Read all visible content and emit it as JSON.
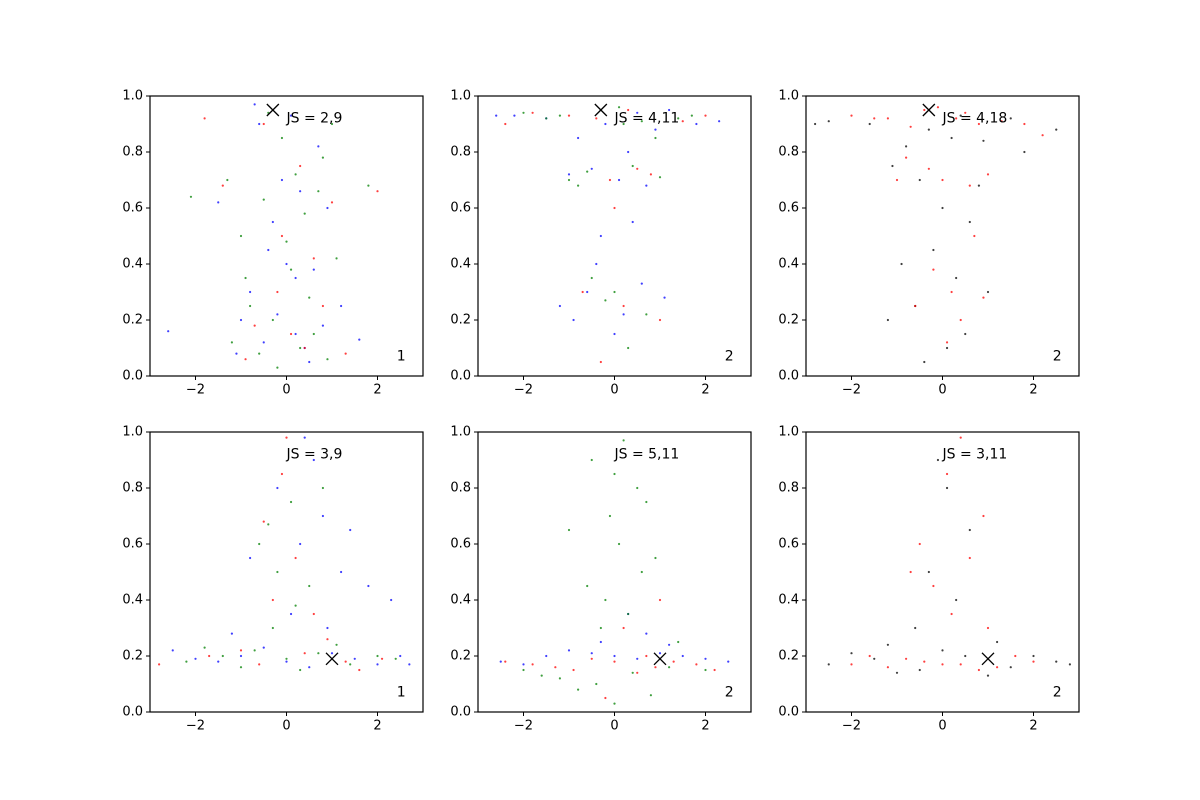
{
  "chart_data": [
    {
      "type": "scatter",
      "annotation": "JS = 2,9",
      "panel_label": "1",
      "marker": {
        "x": -0.3,
        "y": 0.95
      },
      "xlim": [
        -3,
        3
      ],
      "ylim": [
        0,
        1
      ],
      "xticks": [
        {
          "value": -2,
          "label": "−2"
        },
        0,
        2
      ],
      "yticks": [
        {
          "value": 0,
          "label": "0.0"
        },
        0.2,
        0.4,
        0.6,
        0.8,
        {
          "value": 1,
          "label": "1.0"
        }
      ],
      "series": [
        {
          "color": "#0000ff",
          "x": [
            -0.5,
            0.2,
            -1.1,
            0.8,
            -0.2,
            0.4,
            -0.8,
            1.2,
            0.0,
            -0.4,
            0.6,
            -1.5,
            0.3,
            -0.1,
            0.9,
            -0.6,
            0.1,
            1.6,
            -2.6,
            0.5,
            -0.3,
            -1.0,
            0.7,
            0.2,
            -0.7
          ],
          "y": [
            0.12,
            0.15,
            0.08,
            0.18,
            0.22,
            0.1,
            0.3,
            0.25,
            0.4,
            0.45,
            0.38,
            0.62,
            0.66,
            0.7,
            0.6,
            0.9,
            0.93,
            0.13,
            0.16,
            0.05,
            0.55,
            0.2,
            0.82,
            0.35,
            0.97
          ]
        },
        {
          "color": "#ff0000",
          "x": [
            -0.9,
            0.4,
            -0.2,
            1.0,
            -1.4,
            0.6,
            -0.5,
            0.1,
            1.3,
            -1.8,
            0.8,
            -0.1,
            0.3,
            -0.7,
            2.0
          ],
          "y": [
            0.06,
            0.1,
            0.3,
            0.62,
            0.68,
            0.42,
            0.9,
            0.15,
            0.08,
            0.92,
            0.25,
            0.5,
            0.75,
            0.18,
            0.66
          ]
        },
        {
          "color": "#008000",
          "x": [
            -0.6,
            0.3,
            -1.2,
            0.9,
            -0.3,
            0.5,
            -0.9,
            1.1,
            0.0,
            -0.5,
            0.7,
            -1.3,
            0.2,
            -0.1,
            1.0,
            -0.4,
            0.4,
            -2.1,
            1.8,
            -0.8,
            0.6,
            -0.2,
            0.1,
            -1.0,
            0.8
          ],
          "y": [
            0.08,
            0.1,
            0.12,
            0.06,
            0.2,
            0.28,
            0.35,
            0.42,
            0.48,
            0.63,
            0.66,
            0.7,
            0.72,
            0.85,
            0.9,
            0.94,
            0.58,
            0.64,
            0.68,
            0.25,
            0.15,
            0.03,
            0.38,
            0.5,
            0.78
          ]
        }
      ]
    },
    {
      "type": "scatter",
      "annotation": "JS = 4,11",
      "panel_label": "2",
      "marker": {
        "x": -0.3,
        "y": 0.95
      },
      "xlim": [
        -3,
        3
      ],
      "ylim": [
        0,
        1
      ],
      "xticks": [
        {
          "value": -2,
          "label": "−2"
        },
        0,
        2
      ],
      "yticks": [
        {
          "value": 0,
          "label": "0.0"
        },
        0.2,
        0.4,
        0.6,
        0.8,
        {
          "value": 1,
          "label": "1.0"
        }
      ],
      "series": [
        {
          "color": "#0000ff",
          "x": [
            -1.5,
            0.5,
            -0.2,
            1.2,
            -2.2,
            0.9,
            -0.8,
            0.3,
            1.8,
            -0.5,
            0.1,
            -1.0,
            0.7,
            -0.3,
            0.4,
            -0.6,
            1.1,
            -1.2,
            0.2,
            0.0,
            -0.4,
            0.6,
            -0.9,
            2.3,
            -2.6
          ],
          "y": [
            0.92,
            0.94,
            0.9,
            0.95,
            0.93,
            0.88,
            0.85,
            0.8,
            0.9,
            0.74,
            0.7,
            0.72,
            0.68,
            0.5,
            0.55,
            0.3,
            0.28,
            0.25,
            0.22,
            0.15,
            0.4,
            0.33,
            0.2,
            0.91,
            0.93
          ]
        },
        {
          "color": "#ff0000",
          "x": [
            -1.0,
            0.3,
            -0.4,
            1.5,
            -1.8,
            0.8,
            -0.1,
            0.5,
            -0.7,
            0.2,
            1.0,
            -0.3,
            0.0,
            2.0,
            -2.4
          ],
          "y": [
            0.93,
            0.95,
            0.92,
            0.91,
            0.94,
            0.72,
            0.7,
            0.74,
            0.3,
            0.25,
            0.2,
            0.05,
            0.6,
            0.93,
            0.9
          ]
        },
        {
          "color": "#008000",
          "x": [
            -1.2,
            0.6,
            -0.3,
            1.4,
            -2.0,
            0.2,
            -0.6,
            1.0,
            -1.0,
            0.4,
            0.0,
            -0.2,
            0.7,
            -0.5,
            1.7,
            0.1,
            -1.5,
            0.9,
            -0.8,
            0.3
          ],
          "y": [
            0.93,
            0.91,
            0.95,
            0.92,
            0.94,
            0.9,
            0.73,
            0.71,
            0.7,
            0.75,
            0.3,
            0.27,
            0.22,
            0.35,
            0.93,
            0.96,
            0.92,
            0.85,
            0.68,
            0.1
          ]
        }
      ]
    },
    {
      "type": "scatter",
      "annotation": "JS = 4,18",
      "panel_label": "2",
      "marker": {
        "x": -0.3,
        "y": 0.95
      },
      "xlim": [
        -3,
        3
      ],
      "ylim": [
        0,
        1
      ],
      "xticks": [
        {
          "value": -2,
          "label": "−2"
        },
        0,
        2
      ],
      "yticks": [
        {
          "value": 0,
          "label": "0.0"
        },
        0.2,
        0.4,
        0.6,
        0.8,
        {
          "value": 1,
          "label": "1.0"
        }
      ],
      "series": [
        {
          "color": "#000000",
          "x": [
            -1.6,
            0.4,
            -0.3,
            1.5,
            -2.5,
            0.9,
            -0.8,
            0.2,
            1.8,
            -0.5,
            0.0,
            -1.1,
            0.6,
            -0.2,
            0.3,
            -0.6,
            1.0,
            -1.2,
            0.1,
            -0.4,
            0.5,
            2.5,
            -2.8,
            0.8,
            -0.9
          ],
          "y": [
            0.9,
            0.93,
            0.88,
            0.92,
            0.91,
            0.84,
            0.82,
            0.85,
            0.8,
            0.7,
            0.6,
            0.75,
            0.55,
            0.45,
            0.35,
            0.25,
            0.3,
            0.2,
            0.1,
            0.05,
            0.15,
            0.88,
            0.9,
            0.68,
            0.4
          ]
        },
        {
          "color": "#ff0000",
          "x": [
            -1.2,
            0.5,
            -0.4,
            1.3,
            -2.0,
            0.8,
            -0.1,
            0.3,
            -0.7,
            1.0,
            0.0,
            -0.3,
            0.6,
            -1.0,
            1.8,
            0.2,
            -1.5,
            0.9,
            -0.6,
            0.4,
            -0.2,
            0.1,
            2.2,
            -0.8,
            0.7
          ],
          "y": [
            0.92,
            0.94,
            0.95,
            0.91,
            0.93,
            0.9,
            0.96,
            0.92,
            0.89,
            0.72,
            0.7,
            0.74,
            0.68,
            0.7,
            0.9,
            0.3,
            0.92,
            0.28,
            0.25,
            0.2,
            0.38,
            0.12,
            0.86,
            0.78,
            0.5
          ]
        }
      ]
    },
    {
      "type": "scatter",
      "annotation": "JS = 3,9",
      "panel_label": "1",
      "marker": {
        "x": 1.0,
        "y": 0.19
      },
      "xlim": [
        -3,
        3
      ],
      "ylim": [
        0,
        1
      ],
      "xticks": [
        {
          "value": -2,
          "label": "−2"
        },
        0,
        2
      ],
      "yticks": [
        {
          "value": 0,
          "label": "0.0"
        },
        0.2,
        0.4,
        0.6,
        0.8,
        {
          "value": 1,
          "label": "1.0"
        }
      ],
      "series": [
        {
          "color": "#0000ff",
          "x": [
            -2.0,
            -1.0,
            0.0,
            1.0,
            2.0,
            2.5,
            -2.5,
            0.5,
            -0.5,
            1.5,
            -1.5,
            0.3,
            0.8,
            1.2,
            -0.2,
            0.6,
            1.8,
            2.3,
            0.1,
            0.9,
            -0.8,
            1.4,
            0.4,
            -1.2,
            2.7
          ],
          "y": [
            0.19,
            0.2,
            0.18,
            0.21,
            0.17,
            0.2,
            0.22,
            0.16,
            0.23,
            0.19,
            0.18,
            0.6,
            0.7,
            0.5,
            0.8,
            0.9,
            0.45,
            0.4,
            0.35,
            0.3,
            0.55,
            0.65,
            0.98,
            0.28,
            0.17
          ]
        },
        {
          "color": "#ff0000",
          "x": [
            -1.7,
            -0.6,
            0.4,
            1.3,
            2.1,
            -0.3,
            0.2,
            -0.5,
            0.6,
            -2.8,
            0.0,
            0.9,
            -1.0,
            1.6,
            -0.1
          ],
          "y": [
            0.2,
            0.17,
            0.21,
            0.18,
            0.19,
            0.4,
            0.55,
            0.68,
            0.35,
            0.17,
            0.98,
            0.26,
            0.22,
            0.15,
            0.85
          ]
        },
        {
          "color": "#008000",
          "x": [
            -2.2,
            -1.4,
            -0.7,
            0.0,
            0.7,
            1.4,
            2.0,
            -1.0,
            0.3,
            -0.3,
            0.5,
            -0.6,
            0.1,
            0.8,
            -0.2,
            1.1,
            -1.8,
            0.2,
            -0.4,
            2.4
          ],
          "y": [
            0.18,
            0.2,
            0.22,
            0.19,
            0.21,
            0.17,
            0.2,
            0.16,
            0.15,
            0.3,
            0.45,
            0.6,
            0.75,
            0.8,
            0.5,
            0.24,
            0.23,
            0.38,
            0.67,
            0.19
          ]
        }
      ]
    },
    {
      "type": "scatter",
      "annotation": "JS = 5,11",
      "panel_label": "2",
      "marker": {
        "x": 1.0,
        "y": 0.19
      },
      "xlim": [
        -3,
        3
      ],
      "ylim": [
        0,
        1
      ],
      "xticks": [
        {
          "value": -2,
          "label": "−2"
        },
        0,
        2
      ],
      "yticks": [
        {
          "value": 0,
          "label": "0.0"
        },
        0.2,
        0.4,
        0.6,
        0.8,
        {
          "value": 1,
          "label": "1.0"
        }
      ],
      "series": [
        {
          "color": "#0000ff",
          "x": [
            -2.5,
            -1.5,
            -0.5,
            0.5,
            1.5,
            2.5,
            -1.0,
            1.0,
            0.0,
            2.0,
            -2.0,
            0.3,
            0.7,
            -0.3,
            1.2
          ],
          "y": [
            0.18,
            0.2,
            0.21,
            0.19,
            0.2,
            0.18,
            0.22,
            0.21,
            0.2,
            0.19,
            0.17,
            0.35,
            0.28,
            0.25,
            0.24
          ]
        },
        {
          "color": "#ff0000",
          "x": [
            -1.8,
            -0.9,
            0.0,
            0.9,
            1.8,
            -0.5,
            0.5,
            1.3,
            -1.3,
            0.2,
            -0.2,
            2.2,
            -2.4,
            0.7,
            1.0
          ],
          "y": [
            0.17,
            0.15,
            0.18,
            0.16,
            0.17,
            0.19,
            0.14,
            0.18,
            0.16,
            0.3,
            0.05,
            0.15,
            0.18,
            0.2,
            0.4
          ]
        },
        {
          "color": "#008000",
          "x": [
            -2.0,
            -1.2,
            -0.4,
            0.4,
            1.2,
            2.0,
            -0.8,
            0.8,
            0.0,
            -0.3,
            0.3,
            -0.6,
            0.6,
            0.1,
            -0.1,
            0.5,
            -0.5,
            0.2,
            -0.2,
            0.9,
            -1.0,
            1.4,
            0.0,
            -1.6,
            0.7
          ],
          "y": [
            0.15,
            0.12,
            0.1,
            0.14,
            0.16,
            0.15,
            0.08,
            0.06,
            0.03,
            0.3,
            0.35,
            0.45,
            0.5,
            0.6,
            0.7,
            0.8,
            0.9,
            0.97,
            0.4,
            0.55,
            0.65,
            0.25,
            0.85,
            0.13,
            0.75
          ]
        }
      ]
    },
    {
      "type": "scatter",
      "annotation": "JS = 3,11",
      "panel_label": "2",
      "marker": {
        "x": 1.0,
        "y": 0.19
      },
      "xlim": [
        -3,
        3
      ],
      "ylim": [
        0,
        1
      ],
      "xticks": [
        {
          "value": -2,
          "label": "−2"
        },
        0,
        2
      ],
      "yticks": [
        {
          "value": 0,
          "label": "0.0"
        },
        0.2,
        0.4,
        0.6,
        0.8,
        {
          "value": 1,
          "label": "1.0"
        }
      ],
      "series": [
        {
          "color": "#000000",
          "x": [
            -2.5,
            -1.5,
            -0.5,
            0.5,
            1.5,
            2.5,
            -2.0,
            2.0,
            -1.0,
            1.0,
            0.0,
            0.3,
            -0.3,
            0.6,
            -0.6,
            0.1,
            -0.1,
            1.2,
            -1.2,
            2.8
          ],
          "y": [
            0.17,
            0.19,
            0.15,
            0.2,
            0.16,
            0.18,
            0.21,
            0.2,
            0.14,
            0.13,
            0.22,
            0.4,
            0.5,
            0.65,
            0.3,
            0.8,
            0.9,
            0.25,
            0.24,
            0.17
          ]
        },
        {
          "color": "#ff0000",
          "x": [
            -2.0,
            -1.2,
            -0.4,
            0.4,
            1.2,
            2.0,
            -0.8,
            0.8,
            0.0,
            -1.6,
            1.6,
            0.2,
            -0.2,
            0.6,
            0.9,
            -0.5,
            0.4,
            0.1,
            1.0,
            -0.7
          ],
          "y": [
            0.17,
            0.16,
            0.18,
            0.17,
            0.16,
            0.18,
            0.19,
            0.15,
            0.17,
            0.2,
            0.2,
            0.35,
            0.45,
            0.55,
            0.7,
            0.6,
            0.98,
            0.85,
            0.3,
            0.5
          ]
        }
      ]
    }
  ]
}
